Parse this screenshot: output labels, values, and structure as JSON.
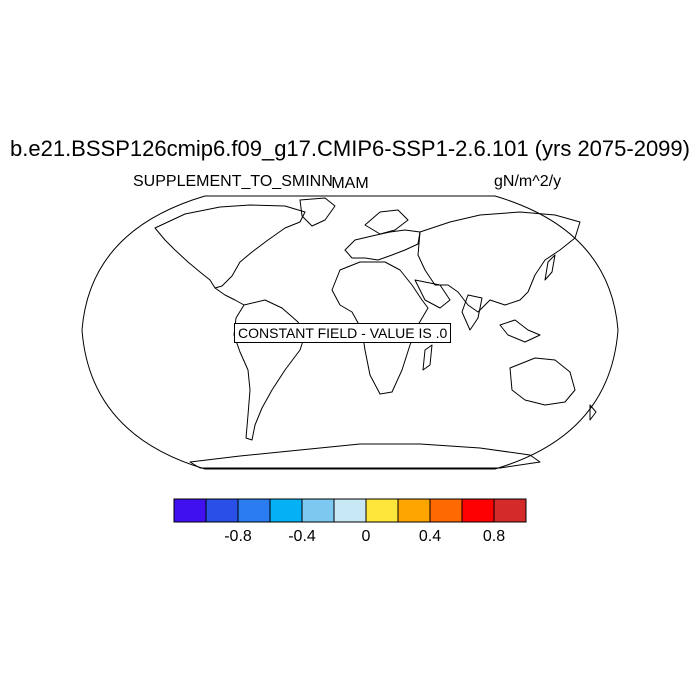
{
  "title": "b.e21.BSSP126cmip6.f09_g17.CMIP6-SSP1-2.6.101 (yrs 2075-2099)",
  "left_string": "SUPPLEMENT_TO_SMINN",
  "center_string": "MAM",
  "right_string": "gN/m^2/y",
  "constant_field_label": "CONSTANT FIELD - VALUE IS .0",
  "projection": "Robinson",
  "colorbar": {
    "colors": [
      "#4010f0",
      "#2a4fe8",
      "#2a7cf0",
      "#06b0f5",
      "#7dc8f0",
      "#c8e8f5",
      "#ffe63a",
      "#ffa500",
      "#ff6a00",
      "#ff0000",
      "#d42a2a"
    ],
    "tick_labels": [
      "-0.8",
      "-0.4",
      "0",
      "0.4",
      "0.8"
    ]
  }
}
